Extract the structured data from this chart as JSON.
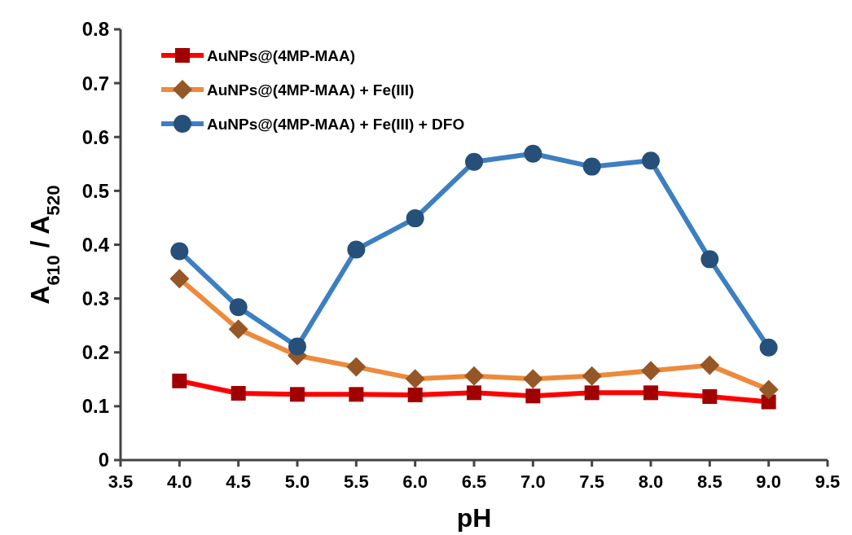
{
  "chart_data": {
    "type": "line",
    "xlabel": "pH",
    "ylabel": "A$_{610}$ / A$_{520}$",
    "x": [
      4.0,
      4.5,
      5.0,
      5.5,
      6.0,
      6.5,
      7.0,
      7.5,
      8.0,
      8.5,
      9.0
    ],
    "xlim": [
      3.5,
      9.5
    ],
    "xticks": [
      {
        "value": 3.5,
        "label": "3.5"
      },
      {
        "value": 4,
        "label": "4.0"
      },
      {
        "value": 4.5,
        "label": "4.5"
      },
      {
        "value": 5,
        "label": "5.0"
      },
      {
        "value": 5.5,
        "label": "5.5"
      },
      {
        "value": 6,
        "label": "6.0"
      },
      {
        "value": 6.5,
        "label": "6.5"
      },
      {
        "value": 7,
        "label": "7.0"
      },
      {
        "value": 7.5,
        "label": "7.5"
      },
      {
        "value": 8,
        "label": "8.0"
      },
      {
        "value": 8.5,
        "label": "8.5"
      },
      {
        "value": 9,
        "label": "9.0"
      },
      {
        "value": 9.5,
        "label": "9.5"
      }
    ],
    "ylim": [
      0,
      0.8
    ],
    "yticks": [
      0,
      0.1,
      0.2,
      0.3,
      0.4,
      0.5,
      0.6,
      0.7,
      0.8
    ],
    "grid": false,
    "legend": "top left",
    "series": [
      {
        "name": "AuNPs@(4MP-MAA)",
        "color": "#ff0000",
        "marker": "square",
        "values": [
          0.147,
          0.124,
          0.122,
          0.122,
          0.121,
          0.125,
          0.119,
          0.125,
          0.125,
          0.118,
          0.108
        ]
      },
      {
        "name": "AuNPs@(4MP-MAA) + Fe(III)",
        "color": "#ed8a3c",
        "marker": "diamond",
        "values": [
          0.337,
          0.243,
          0.194,
          0.173,
          0.151,
          0.156,
          0.151,
          0.156,
          0.166,
          0.176,
          0.131
        ]
      },
      {
        "name": "AuNPs@(4MP-MAA) + Fe(III) + DFO",
        "color": "#3d7fc0",
        "marker": "circle",
        "values": [
          0.388,
          0.284,
          0.211,
          0.391,
          0.449,
          0.554,
          0.569,
          0.545,
          0.556,
          0.373,
          0.209
        ]
      }
    ]
  }
}
